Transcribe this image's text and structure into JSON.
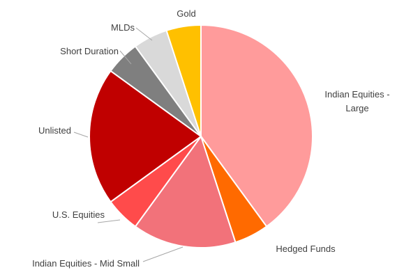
{
  "chart_data": {
    "type": "pie",
    "title": "",
    "start": "Gold",
    "direction": "clockwise",
    "legend": "none",
    "slices": [
      {
        "name": "Indian Equities - Large",
        "label_lines": [
          "Indian Equities -",
          "Large"
        ],
        "value": 40,
        "color": "#ff9b9b"
      },
      {
        "name": "Hedged Funds",
        "label_lines": [
          "Hedged Funds"
        ],
        "value": 5,
        "color": "#ff6a00"
      },
      {
        "name": "Indian Equities - Mid Small",
        "label_lines": [
          "Indian Equities - Mid Small"
        ],
        "value": 15,
        "color": "#f2727a"
      },
      {
        "name": "U.S. Equities",
        "label_lines": [
          "U.S. Equities"
        ],
        "value": 5,
        "color": "#ff4b4b"
      },
      {
        "name": "Unlisted",
        "label_lines": [
          "Unlisted"
        ],
        "value": 20,
        "color": "#c00000"
      },
      {
        "name": "Short Duration",
        "label_lines": [
          "Short Duration"
        ],
        "value": 5,
        "color": "#7f7f7f"
      },
      {
        "name": "MLDs",
        "label_lines": [
          "MLDs"
        ],
        "value": 5,
        "color": "#d9d9d9"
      },
      {
        "name": "Gold",
        "label_lines": [
          "Gold"
        ],
        "value": 5,
        "color": "#ffc000"
      }
    ]
  }
}
